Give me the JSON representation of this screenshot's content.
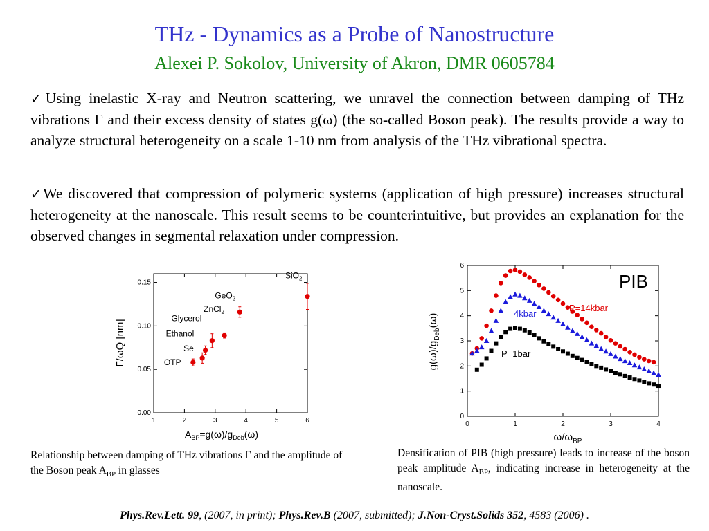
{
  "title": "THz - Dynamics as a Probe of Nanostructure",
  "subtitle": "Alexei P. Sokolov, University of Akron, DMR 0605784",
  "bullets": {
    "mark": "✓",
    "p1": "Using inelastic X-ray and Neutron scattering, we unravel the connection between damping of THz vibrations Γ and their excess density of states g(ω) (the so-called Boson peak). The results provide a way to analyze structural heterogeneity on a scale 1-10 nm from analysis of the THz vibrational spectra.",
    "p2": "We discovered that compression of polymeric systems (application of high pressure) increases structural heterogeneity at the nanoscale. This result seems to be counterintuitive, but provides an explanation for the observed changes in segmental relaxation under compression."
  },
  "captions": {
    "left_a": "Relationship between damping of THz vibrations Γ and the amplitude of the Boson peak A",
    "left_sub": "BP",
    "left_b": " in glasses",
    "right_a": "Densification of PIB (high pressure) leads to increase of the boson peak amplitude A",
    "right_sub": "BP",
    "right_b": ", indicating increase in heterogeneity at the nanoscale."
  },
  "refs": {
    "r1_bold": "Phys.Rev.Lett. 99",
    "r1": ", (2007, in print); ",
    "r2_bold": "Phys.Rev.B",
    "r2": " (2007, submitted); ",
    "r3_bold": "J.Non-Cryst.Solids 352",
    "r3": ", 4583 (2006) ."
  },
  "chart_data": [
    {
      "type": "scatter",
      "xlabel": "A_BP=g(ω)/g_Deb(ω)",
      "ylabel": "Γ/ωQ  [nm]",
      "xlim": [
        1,
        6
      ],
      "ylim": [
        0.0,
        0.16
      ],
      "xticks": [
        "1",
        "2",
        "3",
        "4",
        "5",
        "6"
      ],
      "yticks": [
        "0.00",
        "0.05",
        "0.10",
        "0.15"
      ],
      "color": "#e00000",
      "points": [
        {
          "label": "OTP",
          "x": 2.28,
          "y": 0.058,
          "err": 0.004
        },
        {
          "label": "Se",
          "x": 2.58,
          "y": 0.063,
          "err": 0.006
        },
        {
          "label": "Ethanol",
          "x": 2.68,
          "y": 0.072,
          "err": 0.005
        },
        {
          "label": "Glycerol",
          "x": 2.9,
          "y": 0.083,
          "err": 0.008
        },
        {
          "label": "ZnCl2",
          "x": 3.3,
          "y": 0.089,
          "err": 0.003
        },
        {
          "label": "GeO2",
          "x": 3.8,
          "y": 0.116,
          "err": 0.006
        },
        {
          "label": "SiO2",
          "x": 6.0,
          "y": 0.134,
          "err": 0.015
        }
      ],
      "point_labels": [
        {
          "text": "OTP",
          "sub": ""
        },
        {
          "text": "Se",
          "sub": ""
        },
        {
          "text": "Ethanol",
          "sub": ""
        },
        {
          "text": "Glycerol",
          "sub": ""
        },
        {
          "text": "ZnCl",
          "sub": "2"
        },
        {
          "text": "GeO",
          "sub": "2"
        },
        {
          "text": "SiO",
          "sub": "2"
        }
      ]
    },
    {
      "type": "scatter",
      "title": "PIB",
      "xlabel": "ω/ω_BP",
      "ylabel": "g(ω)/g_Deb(ω)",
      "xlim": [
        0,
        4
      ],
      "ylim": [
        0,
        6
      ],
      "xticks": [
        "0",
        "1",
        "2",
        "3",
        "4"
      ],
      "yticks": [
        "0",
        "1",
        "2",
        "3",
        "4",
        "5",
        "6"
      ],
      "series": [
        {
          "name": "P=14kbar",
          "color": "#e00000",
          "marker": "circle",
          "x": [
            0.1,
            0.2,
            0.3,
            0.4,
            0.5,
            0.6,
            0.7,
            0.8,
            0.9,
            1.0,
            1.1,
            1.2,
            1.3,
            1.4,
            1.5,
            1.6,
            1.7,
            1.8,
            1.9,
            2.0,
            2.1,
            2.2,
            2.3,
            2.4,
            2.5,
            2.6,
            2.7,
            2.8,
            2.9,
            3.0,
            3.1,
            3.2,
            3.3,
            3.4,
            3.5,
            3.6,
            3.7,
            3.8,
            3.9
          ],
          "y": [
            2.5,
            2.7,
            3.1,
            3.6,
            4.2,
            4.8,
            5.3,
            5.6,
            5.78,
            5.82,
            5.75,
            5.63,
            5.52,
            5.38,
            5.22,
            5.08,
            4.93,
            4.78,
            4.63,
            4.48,
            4.33,
            4.17,
            4.03,
            3.87,
            3.72,
            3.56,
            3.43,
            3.3,
            3.15,
            3.02,
            2.9,
            2.78,
            2.67,
            2.55,
            2.45,
            2.35,
            2.27,
            2.2,
            2.15
          ]
        },
        {
          "name": "4kbar",
          "color": "#1a1adc",
          "marker": "triangle",
          "x": [
            0.1,
            0.2,
            0.3,
            0.4,
            0.5,
            0.6,
            0.7,
            0.8,
            0.9,
            1.0,
            1.1,
            1.2,
            1.3,
            1.4,
            1.5,
            1.6,
            1.7,
            1.8,
            1.9,
            2.0,
            2.1,
            2.2,
            2.3,
            2.4,
            2.5,
            2.6,
            2.7,
            2.8,
            2.9,
            3.0,
            3.1,
            3.2,
            3.3,
            3.4,
            3.5,
            3.6,
            3.7,
            3.8,
            3.9,
            4.0
          ],
          "y": [
            2.5,
            2.6,
            2.75,
            3.0,
            3.4,
            3.8,
            4.2,
            4.55,
            4.75,
            4.85,
            4.8,
            4.7,
            4.6,
            4.48,
            4.35,
            4.2,
            4.07,
            3.93,
            3.8,
            3.67,
            3.53,
            3.4,
            3.28,
            3.15,
            3.03,
            2.9,
            2.8,
            2.68,
            2.58,
            2.48,
            2.38,
            2.28,
            2.2,
            2.12,
            2.03,
            1.95,
            1.87,
            1.8,
            1.72,
            1.65
          ]
        },
        {
          "name": "P=1bar",
          "color": "#000000",
          "marker": "square",
          "x": [
            0.2,
            0.3,
            0.4,
            0.5,
            0.6,
            0.7,
            0.8,
            0.9,
            1.0,
            1.1,
            1.2,
            1.3,
            1.4,
            1.5,
            1.6,
            1.7,
            1.8,
            1.9,
            2.0,
            2.1,
            2.2,
            2.3,
            2.4,
            2.5,
            2.6,
            2.7,
            2.8,
            2.9,
            3.0,
            3.1,
            3.2,
            3.3,
            3.4,
            3.5,
            3.6,
            3.7,
            3.8,
            3.9,
            4.0
          ],
          "y": [
            1.85,
            2.05,
            2.3,
            2.6,
            2.9,
            3.15,
            3.35,
            3.48,
            3.52,
            3.48,
            3.42,
            3.33,
            3.22,
            3.1,
            2.98,
            2.88,
            2.77,
            2.67,
            2.58,
            2.49,
            2.4,
            2.32,
            2.24,
            2.16,
            2.08,
            2.0,
            1.93,
            1.86,
            1.8,
            1.73,
            1.67,
            1.6,
            1.54,
            1.48,
            1.42,
            1.37,
            1.31,
            1.26,
            1.21
          ]
        }
      ],
      "series_labels": [
        "P=14kbar",
        "4kbar",
        "P=1bar"
      ]
    }
  ]
}
